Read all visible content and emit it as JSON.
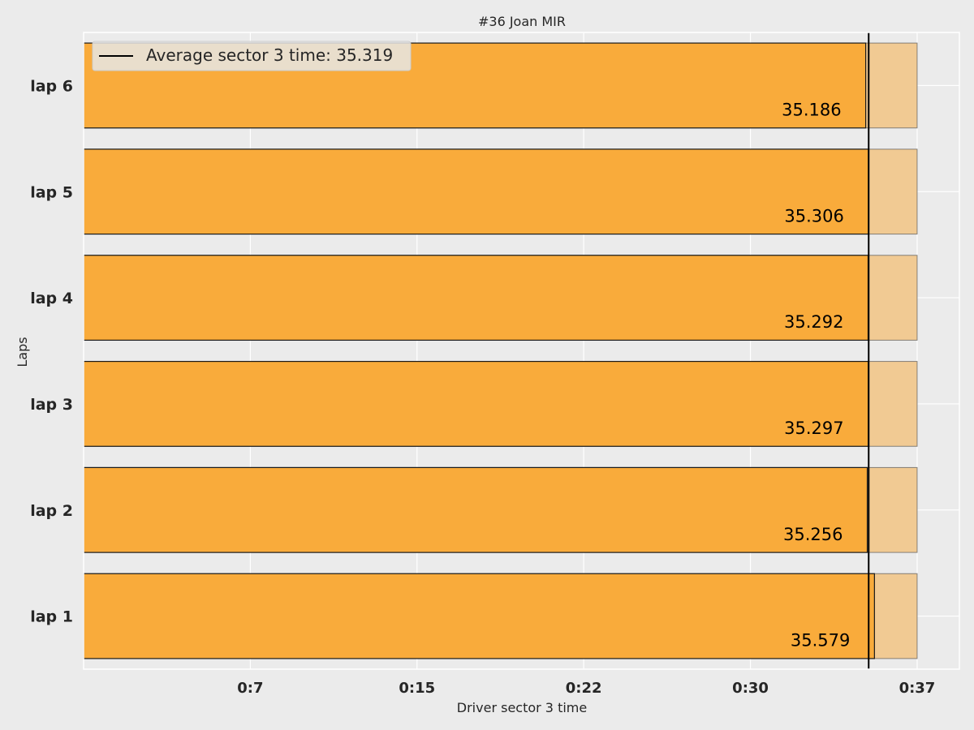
{
  "chart_data": {
    "type": "bar",
    "orientation": "horizontal",
    "title": "#36  Joan MIR",
    "xlabel": "Driver sector 3 time",
    "ylabel": "Laps",
    "categories": [
      "lap 1",
      "lap 2",
      "lap 3",
      "lap 4",
      "lap 5",
      "lap 6"
    ],
    "values": [
      35.579,
      35.256,
      35.297,
      35.292,
      35.306,
      35.186
    ],
    "value_labels": [
      "35.579",
      "35.256",
      "35.297",
      "35.292",
      "35.306",
      "35.186"
    ],
    "reference_max": 37.5,
    "xlim": [
      0,
      39.4
    ],
    "xticks": [
      7.5,
      15,
      22.5,
      30,
      37.5
    ],
    "xtick_labels": [
      "0:7",
      "0:15",
      "0:22",
      "0:30",
      "0:37"
    ],
    "average": 35.319,
    "legend": {
      "label": "Average sector 3 time: 35.319",
      "placement": "top-left"
    },
    "colors": {
      "bar": "#f9ab3b",
      "reference_bar": "#f1ca93",
      "average_line": "#000000",
      "background": "#ebebeb",
      "grid": "#ffffff"
    },
    "grid": true
  }
}
